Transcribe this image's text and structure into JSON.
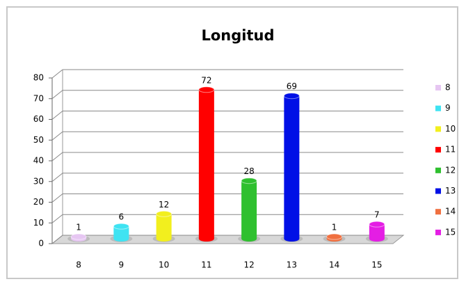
{
  "chart_data": {
    "type": "bar",
    "title": "Longitud",
    "categories": [
      "8",
      "9",
      "10",
      "11",
      "12",
      "13",
      "14",
      "15"
    ],
    "values": [
      1,
      6,
      12,
      72,
      28,
      69,
      1,
      7
    ],
    "colors": [
      "#e6c6f2",
      "#3fe3f2",
      "#f2ef1e",
      "#ff0000",
      "#2fc02f",
      "#0010e6",
      "#f07040",
      "#e41ee4"
    ],
    "ylim": [
      0,
      80
    ],
    "yticks": [
      0,
      10,
      20,
      30,
      40,
      50,
      60,
      70,
      80
    ],
    "grid": true,
    "legend": "right"
  }
}
